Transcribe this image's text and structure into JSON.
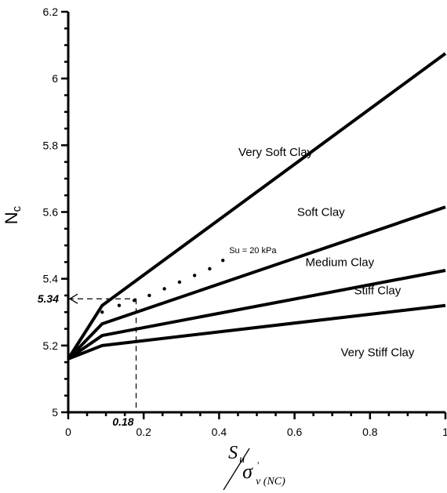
{
  "chart_data": {
    "type": "line",
    "xlabel": {
      "main": "S",
      "main_sub": "u",
      "den": "σ",
      "den_sup": "'",
      "den_sub": "v (NC)"
    },
    "ylabel": {
      "main": "N",
      "sub": "c"
    },
    "xlim": [
      0,
      1
    ],
    "ylim": [
      5,
      6.2
    ],
    "x_ticks": [
      {
        "value": 0,
        "label": "0"
      },
      {
        "value": 0.2,
        "label": "0.2"
      },
      {
        "value": 0.4,
        "label": "0.4"
      },
      {
        "value": 0.6,
        "label": "0.6"
      },
      {
        "value": 0.8,
        "label": "0.8"
      },
      {
        "value": 1,
        "label": "1"
      }
    ],
    "y_ticks": [
      {
        "value": 5,
        "label": "5"
      },
      {
        "value": 5.2,
        "label": "5.2"
      },
      {
        "value": 5.4,
        "label": "5.4"
      },
      {
        "value": 5.6,
        "label": "5.6"
      },
      {
        "value": 5.8,
        "label": "5.8"
      },
      {
        "value": 6,
        "label": "6"
      },
      {
        "value": 6.2,
        "label": "6.2"
      }
    ],
    "grid": false,
    "series": [
      {
        "x": [
          0,
          0.09,
          1
        ],
        "y": [
          5.16,
          5.32,
          6.075
        ]
      },
      {
        "x": [
          0,
          0.09,
          1
        ],
        "y": [
          5.16,
          5.265,
          5.615
        ]
      },
      {
        "x": [
          0,
          0.09,
          1
        ],
        "y": [
          5.16,
          5.23,
          5.425
        ]
      },
      {
        "x": [
          0,
          0.09,
          1
        ],
        "y": [
          5.16,
          5.2,
          5.32
        ]
      }
    ],
    "dotted_series": {
      "label": "Su = 20 kPa",
      "x": [
        0.09,
        0.135,
        0.175,
        0.215,
        0.255,
        0.295,
        0.335,
        0.375,
        0.41
      ],
      "y": [
        5.3,
        5.32,
        5.335,
        5.35,
        5.37,
        5.39,
        5.41,
        5.43,
        5.455
      ]
    },
    "annotations": [
      {
        "text": "Very Soft Clay",
        "x": 0.55,
        "y": 5.78
      },
      {
        "text": "Soft Clay",
        "x": 0.67,
        "y": 5.6
      },
      {
        "text": "Medium Clay",
        "x": 0.72,
        "y": 5.45
      },
      {
        "text": "Stiff Clay",
        "x": 0.82,
        "y": 5.365
      },
      {
        "text": "Very Stiff Clay",
        "x": 0.82,
        "y": 5.18
      }
    ],
    "marker": {
      "x": 0.18,
      "y": 5.34,
      "x_label": "0.18",
      "y_label": "5.34"
    }
  }
}
